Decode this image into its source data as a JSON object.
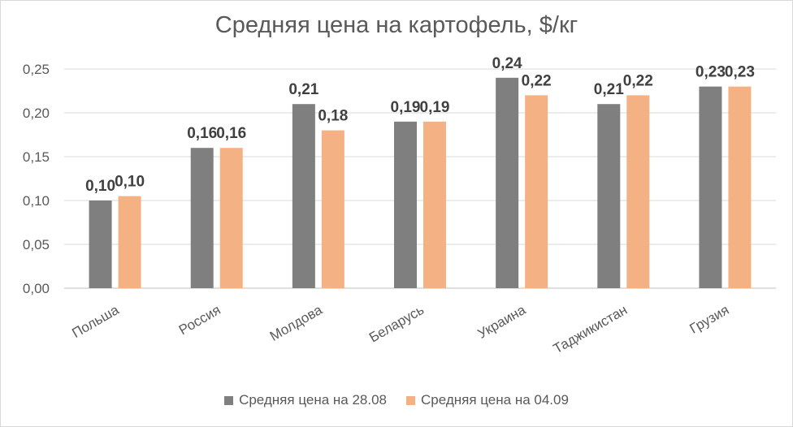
{
  "chart_data": {
    "type": "bar",
    "title": "Средняя цена на картофель, $/кг",
    "categories": [
      "Польша",
      "Россия",
      "Молдова",
      "Беларусь",
      "Украина",
      "Таджикистан",
      "Грузия"
    ],
    "series": [
      {
        "name": "Средняя цена на 28.08",
        "color": "#7f7f7f",
        "values": [
          0.1,
          0.16,
          0.21,
          0.19,
          0.24,
          0.21,
          0.23
        ],
        "labels": [
          "0,10",
          "0,16",
          "0,21",
          "0,19",
          "0,24",
          "0,21",
          "0,23"
        ]
      },
      {
        "name": "Средняя цена на 04.09",
        "color": "#f4b183",
        "values": [
          0.105,
          0.16,
          0.18,
          0.19,
          0.22,
          0.22,
          0.23
        ],
        "labels": [
          "0,10",
          "0,16",
          "0,18",
          "0,19",
          "0,22",
          "0,22",
          "0,23"
        ]
      }
    ],
    "y_ticks": [
      "0,00",
      "0,05",
      "0,10",
      "0,15",
      "0,20",
      "0,25"
    ],
    "ylim": [
      0,
      0.25
    ],
    "grid": true,
    "legend_position": "bottom"
  }
}
